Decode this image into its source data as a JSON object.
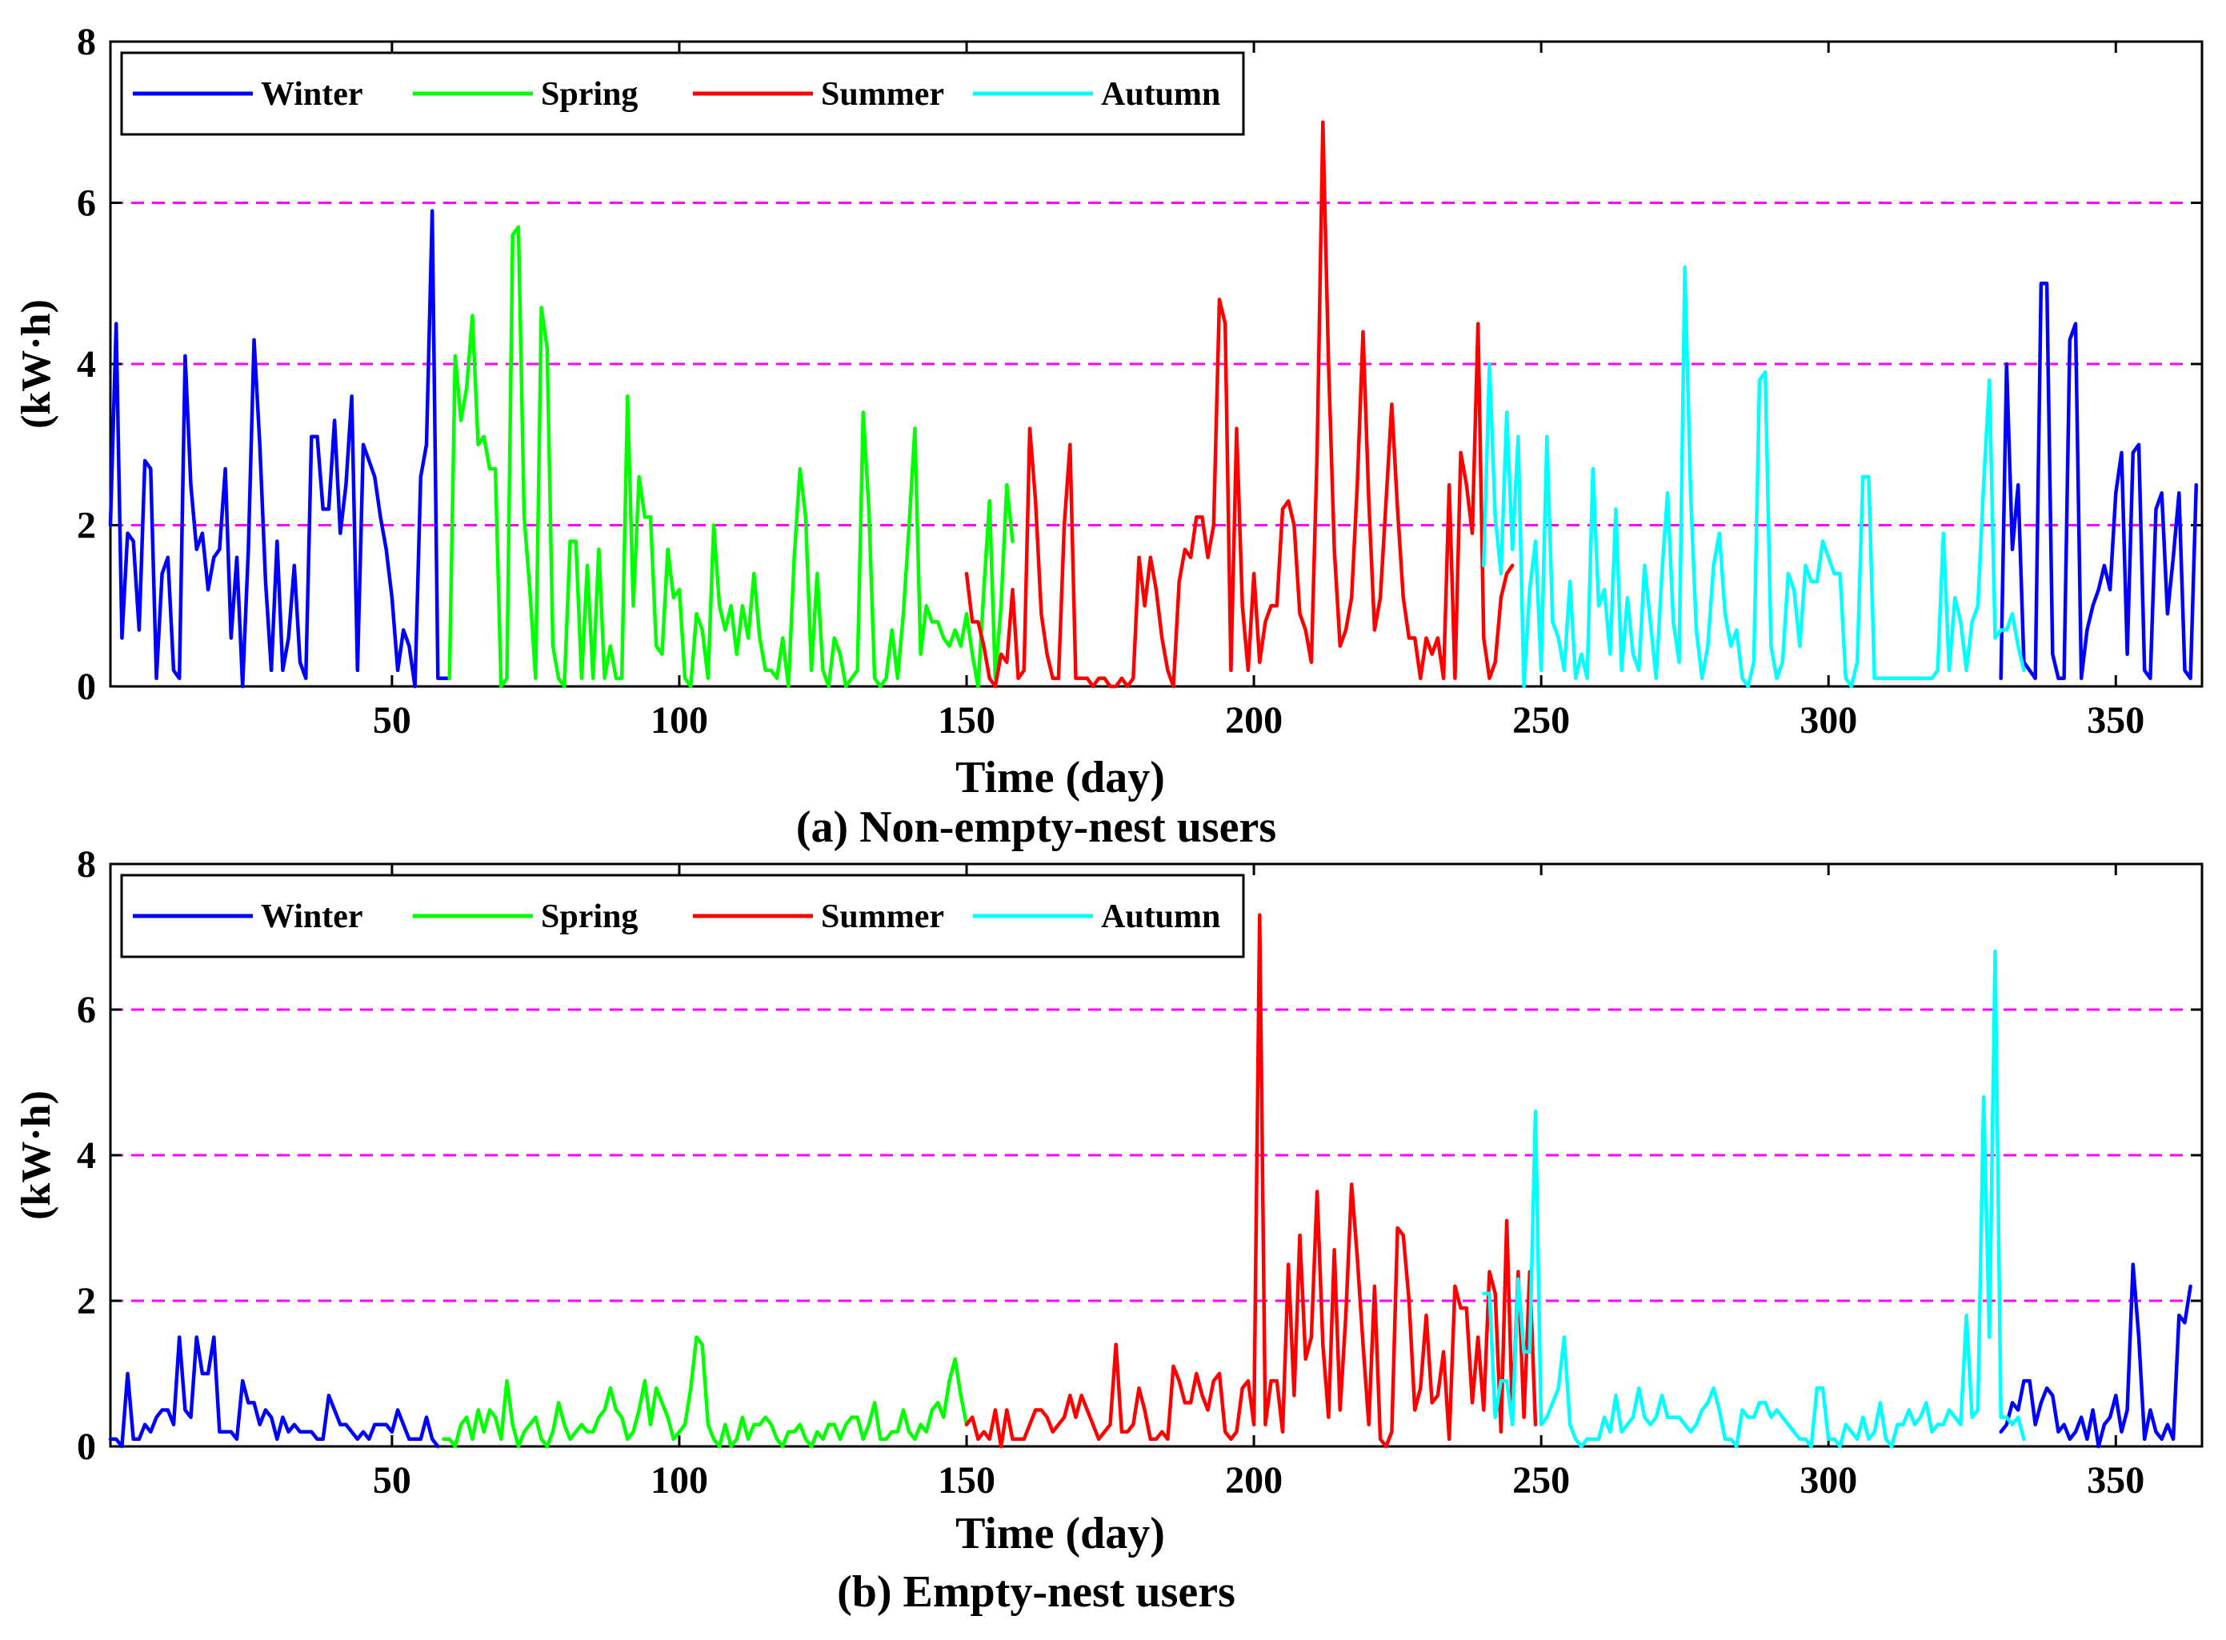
{
  "chart_data": [
    {
      "type": "line",
      "caption": "(a) Non-empty-nest users",
      "xlabel": "Time (day)",
      "ylabel": "(kW·h)",
      "xlim": [
        1,
        365
      ],
      "ylim": [
        0,
        8
      ],
      "xticks": [
        50,
        100,
        150,
        200,
        250,
        300,
        350
      ],
      "yticks": [
        0,
        2,
        4,
        6,
        8
      ],
      "reference_lines": [
        2,
        4,
        6
      ],
      "reference_line_color": "#ff00ff",
      "legend": {
        "placement": "top-left",
        "entries": [
          "Winter",
          "Spring",
          "Summer",
          "Autumn"
        ]
      },
      "series": [
        {
          "name": "Winter",
          "color": "#0000ff",
          "segments": [
            {
              "x_start": 1,
              "values": [
                2.0,
                4.5,
                0.6,
                1.9,
                1.8,
                0.7,
                2.8,
                2.7,
                0.1,
                1.4,
                1.6,
                0.2,
                0.1,
                4.1,
                2.5,
                1.7,
                1.9,
                1.2,
                1.6,
                1.7,
                2.7,
                0.6,
                1.6,
                0.0,
                1.7,
                4.3,
                3.0,
                1.3,
                0.2,
                1.8,
                0.2,
                0.6,
                1.5,
                0.3,
                0.1,
                3.1,
                3.1,
                2.2,
                2.2,
                3.3,
                1.9,
                2.5,
                3.6,
                0.2,
                3.0,
                2.8,
                2.6,
                2.1,
                1.7,
                1.1,
                0.2,
                0.7,
                0.5,
                0.0,
                2.6,
                3.0,
                5.9,
                0.1,
                0.1,
                0.1
              ]
            },
            {
              "x_start": 330,
              "values": [
                0.1,
                4.0,
                1.7,
                2.5,
                0.3,
                0.2,
                0.1,
                5.0,
                5.0,
                0.4,
                0.1,
                0.1,
                4.3,
                4.5,
                0.1,
                0.7,
                1.0,
                1.2,
                1.5,
                1.2,
                2.4,
                2.9,
                0.4,
                2.9,
                3.0,
                0.2,
                0.1,
                2.2,
                2.4,
                0.9,
                1.6,
                2.4,
                0.2,
                0.1,
                2.5
              ]
            }
          ]
        },
        {
          "name": "Spring",
          "color": "#00ff00",
          "segments": [
            {
              "x_start": 60,
              "values": [
                0.1,
                4.1,
                3.3,
                3.7,
                4.6,
                3.0,
                3.1,
                2.7,
                2.7,
                0.0,
                0.1,
                5.6,
                5.7,
                2.1,
                1.2,
                0.1,
                4.7,
                4.2,
                0.5,
                0.1,
                0.0,
                1.8,
                1.8,
                0.1,
                1.5,
                0.1,
                1.7,
                0.1,
                0.5,
                0.1,
                0.1,
                3.6,
                1.0,
                2.6,
                2.1,
                2.1,
                0.5,
                0.4,
                1.7,
                1.1,
                1.2,
                0.1,
                0.0,
                0.9,
                0.7,
                0.1,
                2.0,
                1.0,
                0.7,
                1.0,
                0.4,
                1.0,
                0.6,
                1.4,
                0.6,
                0.2,
                0.2,
                0.1,
                0.6,
                0.0,
                1.6,
                2.7,
                2.1,
                0.2,
                1.4,
                0.2,
                0.0,
                0.6,
                0.4,
                0.0,
                0.1,
                0.2,
                3.4,
                2.2,
                0.1,
                0.0,
                0.1,
                0.7,
                0.1,
                0.9,
                2.0,
                3.2,
                0.4,
                1.0,
                0.8,
                0.8,
                0.6,
                0.5,
                0.7,
                0.5,
                0.9,
                0.4,
                0.0,
                1.2,
                2.3,
                0.1,
                1.0,
                2.5,
                1.8
              ]
            }
          ]
        },
        {
          "name": "Summer",
          "color": "#ff0000",
          "segments": [
            {
              "x_start": 150,
              "values": [
                1.4,
                0.8,
                0.8,
                0.5,
                0.1,
                0.0,
                0.4,
                0.3,
                1.2,
                0.1,
                0.2,
                3.2,
                2.3,
                0.9,
                0.4,
                0.1,
                0.1,
                2.0,
                3.0,
                0.1,
                0.1,
                0.1,
                0.0,
                0.1,
                0.1,
                0.0,
                0.0,
                0.1,
                0.0,
                0.1,
                1.6,
                1.0,
                1.6,
                1.2,
                0.6,
                0.2,
                0.0,
                1.3,
                1.7,
                1.6,
                2.1,
                2.1,
                1.6,
                2.0,
                4.8,
                4.5,
                0.2,
                3.2,
                1.0,
                0.2,
                1.4,
                0.3,
                0.8,
                1.0,
                1.0,
                2.2,
                2.3,
                2.0,
                0.9,
                0.7,
                0.3,
                2.9,
                7.0,
                4.0,
                1.7,
                0.5,
                0.7,
                1.1,
                2.5,
                4.4,
                2.3,
                0.7,
                1.1,
                2.3,
                3.5,
                2.2,
                1.1,
                0.6,
                0.6,
                0.1,
                0.6,
                0.4,
                0.6,
                0.1,
                2.5,
                0.1,
                2.9,
                2.5,
                1.9,
                4.5,
                0.6,
                0.1,
                0.3,
                1.1,
                1.4,
                1.5
              ]
            }
          ]
        },
        {
          "name": "Autumn",
          "color": "#00ffff",
          "segments": [
            {
              "x_start": 240,
              "values": [
                1.5,
                4.0,
                2.1,
                1.4,
                3.4,
                1.7,
                3.1,
                0.0,
                1.2,
                1.8,
                0.2,
                3.1,
                0.8,
                0.6,
                0.2,
                1.3,
                0.1,
                0.4,
                0.1,
                2.7,
                1.0,
                1.2,
                0.4,
                2.2,
                0.2,
                1.1,
                0.4,
                0.2,
                1.5,
                0.8,
                0.1,
                1.4,
                2.4,
                0.8,
                0.3,
                5.2,
                2.4,
                0.7,
                0.1,
                0.5,
                1.5,
                1.9,
                0.9,
                0.5,
                0.7,
                0.1,
                0.0,
                0.3,
                3.8,
                3.9,
                0.5,
                0.1,
                0.3,
                1.4,
                1.2,
                0.5,
                1.5,
                1.3,
                1.3,
                1.8,
                1.6,
                1.4,
                1.4,
                0.1,
                0.0,
                0.3,
                2.6,
                2.6,
                0.1,
                0.1,
                0.1,
                0.1,
                0.1,
                0.1,
                0.1,
                0.1,
                0.1,
                0.1,
                0.1,
                0.2,
                1.9,
                0.2,
                1.1,
                0.8,
                0.2,
                0.8,
                1.0,
                2.5,
                3.8,
                0.6,
                0.7,
                0.7,
                0.9,
                0.5,
                0.2
              ]
            }
          ]
        }
      ]
    },
    {
      "type": "line",
      "caption": "(b) Empty-nest users",
      "xlabel": "Time (day)",
      "ylabel": "(kW·h)",
      "xlim": [
        1,
        365
      ],
      "ylim": [
        0,
        8
      ],
      "xticks": [
        50,
        100,
        150,
        200,
        250,
        300,
        350
      ],
      "yticks": [
        0,
        2,
        4,
        6,
        8
      ],
      "reference_lines": [
        2,
        4,
        6
      ],
      "reference_line_color": "#ff00ff",
      "legend": {
        "placement": "top-left",
        "entries": [
          "Winter",
          "Spring",
          "Summer",
          "Autumn"
        ]
      },
      "series": [
        {
          "name": "Winter",
          "color": "#0000ff",
          "segments": [
            {
              "x_start": 1,
              "values": [
                0.1,
                0.1,
                0.0,
                1.0,
                0.1,
                0.1,
                0.3,
                0.2,
                0.4,
                0.5,
                0.5,
                0.3,
                1.5,
                0.5,
                0.4,
                1.5,
                1.0,
                1.0,
                1.5,
                0.2,
                0.2,
                0.2,
                0.1,
                0.9,
                0.6,
                0.6,
                0.3,
                0.5,
                0.4,
                0.1,
                0.4,
                0.2,
                0.3,
                0.2,
                0.2,
                0.2,
                0.1,
                0.1,
                0.7,
                0.5,
                0.3,
                0.3,
                0.2,
                0.1,
                0.2,
                0.1,
                0.3,
                0.3,
                0.3,
                0.2,
                0.5,
                0.3,
                0.1,
                0.1,
                0.1,
                0.4,
                0.1,
                0.0
              ]
            },
            {
              "x_start": 330,
              "values": [
                0.2,
                0.3,
                0.6,
                0.5,
                0.9,
                0.9,
                0.3,
                0.6,
                0.8,
                0.7,
                0.2,
                0.3,
                0.1,
                0.2,
                0.4,
                0.1,
                0.5,
                0.0,
                0.3,
                0.4,
                0.7,
                0.2,
                0.5,
                2.5,
                1.5,
                0.1,
                0.5,
                0.2,
                0.1,
                0.3,
                0.1,
                1.8,
                1.7,
                2.2
              ]
            }
          ]
        },
        {
          "name": "Spring",
          "color": "#00ff00",
          "segments": [
            {
              "x_start": 59,
              "values": [
                0.1,
                0.1,
                0.0,
                0.3,
                0.4,
                0.1,
                0.5,
                0.2,
                0.5,
                0.4,
                0.1,
                0.9,
                0.3,
                0.0,
                0.2,
                0.3,
                0.4,
                0.1,
                0.0,
                0.2,
                0.6,
                0.3,
                0.1,
                0.2,
                0.3,
                0.2,
                0.2,
                0.4,
                0.5,
                0.8,
                0.5,
                0.4,
                0.1,
                0.2,
                0.5,
                0.9,
                0.3,
                0.8,
                0.6,
                0.4,
                0.1,
                0.2,
                0.3,
                0.8,
                1.5,
                1.4,
                0.3,
                0.1,
                0.0,
                0.3,
                0.0,
                0.1,
                0.4,
                0.1,
                0.3,
                0.3,
                0.4,
                0.3,
                0.1,
                0.0,
                0.2,
                0.2,
                0.3,
                0.1,
                0.0,
                0.2,
                0.1,
                0.3,
                0.3,
                0.1,
                0.3,
                0.4,
                0.4,
                0.1,
                0.3,
                0.6,
                0.1,
                0.1,
                0.2,
                0.2,
                0.5,
                0.2,
                0.1,
                0.3,
                0.2,
                0.5,
                0.6,
                0.4,
                0.9,
                1.2,
                0.7,
                0.3
              ]
            }
          ]
        },
        {
          "name": "Summer",
          "color": "#ff0000",
          "segments": [
            {
              "x_start": 150,
              "values": [
                0.3,
                0.4,
                0.1,
                0.2,
                0.1,
                0.5,
                0.0,
                0.5,
                0.1,
                0.1,
                0.1,
                0.3,
                0.5,
                0.5,
                0.4,
                0.2,
                0.3,
                0.4,
                0.7,
                0.4,
                0.7,
                0.5,
                0.3,
                0.1,
                0.2,
                0.3,
                1.4,
                0.2,
                0.2,
                0.3,
                0.8,
                0.5,
                0.1,
                0.1,
                0.2,
                0.1,
                1.1,
                0.9,
                0.6,
                0.6,
                1.0,
                0.7,
                0.5,
                0.9,
                1.0,
                0.2,
                0.1,
                0.2,
                0.8,
                0.9,
                0.3,
                7.3,
                0.3,
                0.9,
                0.9,
                0.2,
                2.5,
                0.7,
                2.9,
                1.2,
                1.5,
                3.5,
                1.4,
                0.4,
                2.7,
                0.5,
                1.8,
                3.6,
                2.6,
                1.4,
                0.3,
                2.2,
                0.1,
                0.0,
                0.2,
                3.0,
                2.9,
                2.0,
                0.5,
                0.8,
                1.8,
                0.6,
                0.7,
                1.3,
                0.1,
                2.2,
                1.9,
                1.9,
                0.6,
                1.5,
                0.5,
                2.4,
                2.1,
                0.2,
                3.1,
                0.4,
                2.4,
                0.4,
                2.4,
                0.3
              ]
            }
          ]
        },
        {
          "name": "Autumn",
          "color": "#00ffff",
          "segments": [
            {
              "x_start": 240,
              "values": [
                2.1,
                2.1,
                0.4,
                0.9,
                0.9,
                0.3,
                2.3,
                1.3,
                1.3,
                4.6,
                0.3,
                0.4,
                0.6,
                0.8,
                1.5,
                0.3,
                0.1,
                0.0,
                0.1,
                0.1,
                0.1,
                0.4,
                0.2,
                0.7,
                0.2,
                0.3,
                0.4,
                0.8,
                0.4,
                0.3,
                0.4,
                0.7,
                0.4,
                0.4,
                0.4,
                0.3,
                0.2,
                0.3,
                0.5,
                0.6,
                0.8,
                0.5,
                0.1,
                0.1,
                0.0,
                0.5,
                0.4,
                0.4,
                0.6,
                0.6,
                0.4,
                0.5,
                0.4,
                0.3,
                0.2,
                0.1,
                0.1,
                0.0,
                0.8,
                0.8,
                0.1,
                0.1,
                0.0,
                0.3,
                0.2,
                0.1,
                0.4,
                0.1,
                0.2,
                0.6,
                0.1,
                0.0,
                0.3,
                0.3,
                0.5,
                0.3,
                0.4,
                0.6,
                0.2,
                0.3,
                0.3,
                0.5,
                0.4,
                0.3,
                1.8,
                0.4,
                0.5,
                4.8,
                1.5,
                6.8,
                0.4,
                0.4,
                0.3,
                0.4,
                0.1
              ]
            }
          ]
        }
      ]
    }
  ]
}
